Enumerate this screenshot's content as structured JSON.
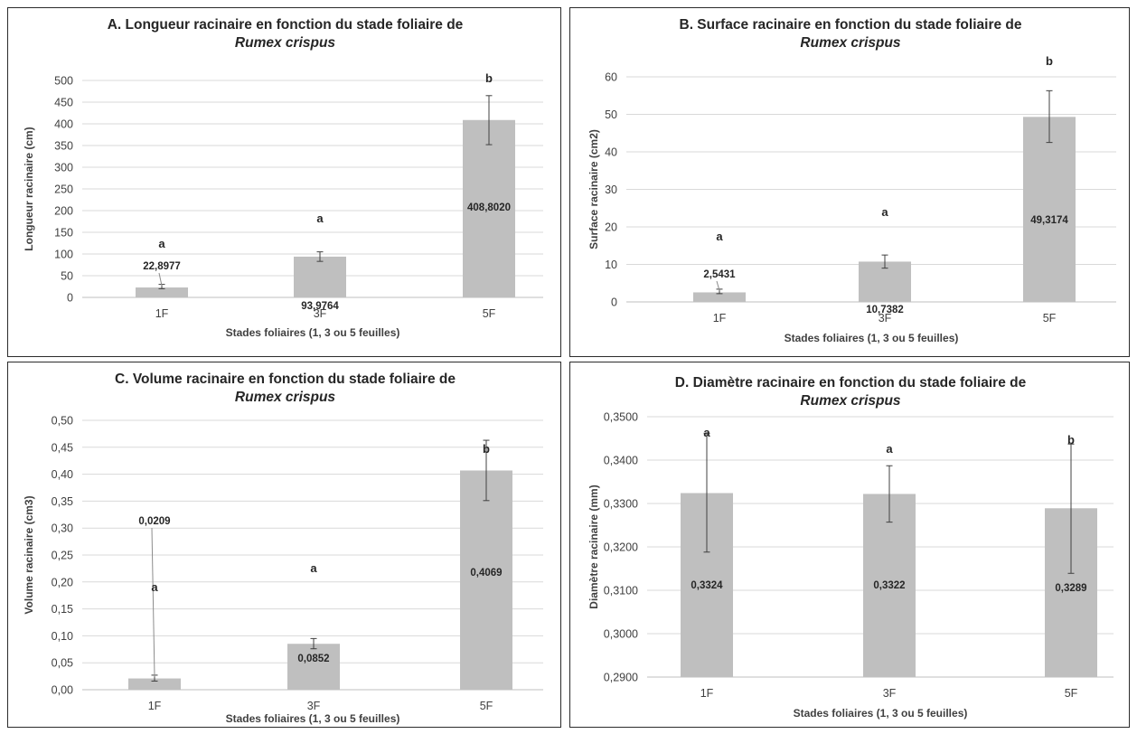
{
  "chart_data": [
    {
      "id": "A",
      "type": "bar",
      "title": "A. Longueur racinaire en fonction du stade foliaire de",
      "title_italic": "Rumex crispus",
      "xlabel": "Stades foliaires (1, 3 ou 5 feuilles)",
      "ylabel": "Longueur racinaire (cm)",
      "ylim": [
        0,
        500
      ],
      "ytick_step": 50,
      "ytick_labels": [
        "0",
        "50",
        "100",
        "150",
        "200",
        "250",
        "300",
        "350",
        "400",
        "450",
        "500"
      ],
      "categories": [
        "1F",
        "3F",
        "5F"
      ],
      "values": [
        22.8977,
        93.9764,
        408.802
      ],
      "value_labels": [
        "22,8977",
        "93,9764",
        "408,8020"
      ],
      "errors": [
        [
          20,
          30
        ],
        [
          83,
          105
        ],
        [
          352,
          465
        ]
      ],
      "significance": [
        "a",
        "a",
        "b"
      ],
      "bar_color": "#bfbfbf",
      "grid": true
    },
    {
      "id": "B",
      "type": "bar",
      "title": "B. Surface racinaire en fonction du stade foliaire de",
      "title_italic": "Rumex crispus",
      "xlabel": "Stades foliaires (1, 3 ou 5 feuilles)",
      "ylabel": "Surface racinaire (cm2)",
      "ylim": [
        0,
        60
      ],
      "ytick_step": 10,
      "ytick_labels": [
        "0",
        "10",
        "20",
        "30",
        "40",
        "50",
        "60"
      ],
      "categories": [
        "1F",
        "3F",
        "5F"
      ],
      "values": [
        2.5431,
        10.7382,
        49.3174
      ],
      "value_labels": [
        "2,5431",
        "10,7382",
        "49,3174"
      ],
      "errors": [
        [
          2.2,
          3.4
        ],
        [
          9.0,
          12.5
        ],
        [
          42.5,
          56.3
        ]
      ],
      "significance": [
        "a",
        "a",
        "b"
      ],
      "bar_color": "#bfbfbf",
      "grid": true
    },
    {
      "id": "C",
      "type": "bar",
      "title": "C. Volume racinaire en fonction du stade foliaire de",
      "title_italic": "Rumex crispus",
      "xlabel": "Stades foliaires (1, 3 ou 5 feuilles)",
      "ylabel": "Volume racinaire (cm3)",
      "ylim": [
        0,
        0.5
      ],
      "ytick_step": 0.05,
      "ytick_labels": [
        "0,00",
        "0,05",
        "0,10",
        "0,15",
        "0,20",
        "0,25",
        "0,30",
        "0,35",
        "0,40",
        "0,45",
        "0,50"
      ],
      "categories": [
        "1F",
        "3F",
        "5F"
      ],
      "values": [
        0.0209,
        0.0852,
        0.4069
      ],
      "value_labels": [
        "0,0209",
        "0,0852",
        "0,4069"
      ],
      "errors": [
        [
          0.016,
          0.027
        ],
        [
          0.076,
          0.095
        ],
        [
          0.351,
          0.463
        ]
      ],
      "significance": [
        "a",
        "a",
        "b"
      ],
      "bar_color": "#bfbfbf",
      "grid": true
    },
    {
      "id": "D",
      "type": "bar",
      "title": "D. Diamètre racinaire en fonction du stade foliaire de",
      "title_italic": "Rumex crispus",
      "xlabel": "Stades foliaires (1, 3 ou 5 feuilles)",
      "ylabel": "Diamètre racinaire (mm)",
      "ylim": [
        0.29,
        0.35
      ],
      "ytick_step": 0.01,
      "ytick_labels": [
        "0,2900",
        "0,3000",
        "0,3100",
        "0,3200",
        "0,3300",
        "0,3400",
        "0,3500"
      ],
      "categories": [
        "1F",
        "3F",
        "5F"
      ],
      "values": [
        0.3324,
        0.3322,
        0.3289
      ],
      "value_labels": [
        "0,3324",
        "0,3322",
        "0,3289"
      ],
      "errors": [
        [
          0.3188,
          0.3462
        ],
        [
          0.3257,
          0.3387
        ],
        [
          0.3139,
          0.3437
        ]
      ],
      "significance": [
        "a",
        "a",
        "b"
      ],
      "bar_color": "#bfbfbf",
      "grid": true
    }
  ]
}
